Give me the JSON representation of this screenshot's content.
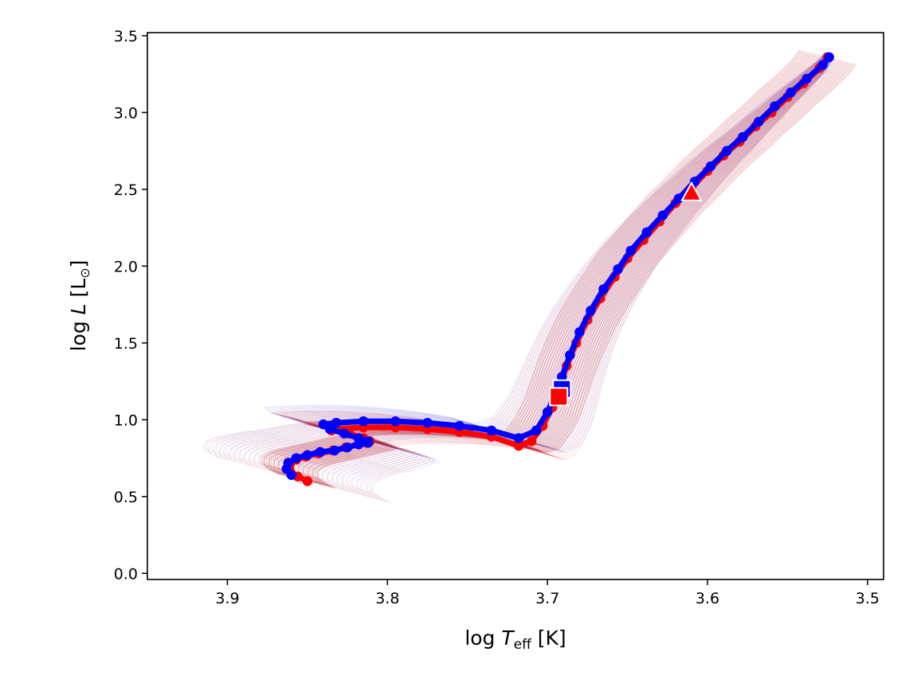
{
  "chart_data": {
    "type": "line",
    "title": "",
    "xlabel": "log T_eff [K]",
    "ylabel": "log L [L⊙]",
    "xlim": [
      3.95,
      3.49
    ],
    "ylim": [
      -0.04,
      3.52
    ],
    "x_inverted": true,
    "grid": false,
    "x_ticks": [
      3.9,
      3.8,
      3.7,
      3.6,
      3.5
    ],
    "y_ticks": [
      0.0,
      0.5,
      1.0,
      1.5,
      2.0,
      2.5,
      3.0,
      3.5
    ],
    "x_tick_labels": [
      "3.9",
      "3.8",
      "3.7",
      "3.6",
      "3.5"
    ],
    "y_tick_labels": [
      "0.0",
      "0.5",
      "1.0",
      "1.5",
      "2.0",
      "2.5",
      "3.0",
      "3.5"
    ],
    "colors": {
      "blue": "#0000ff",
      "red": "#ff0000",
      "ensemble_blue": "#3a2fd0",
      "ensemble_red": "#c00010"
    },
    "series": [
      {
        "color": "#ff0000",
        "x": [
          3.85,
          3.856,
          3.861,
          3.861,
          3.857,
          3.851,
          3.843,
          3.834,
          3.826,
          3.818,
          3.813,
          3.811,
          3.815,
          3.824,
          3.835,
          3.832,
          3.815,
          3.795,
          3.775,
          3.755,
          3.735,
          3.718,
          3.71,
          3.703,
          3.697,
          3.693,
          3.688,
          3.682,
          3.675,
          3.667,
          3.658,
          3.65,
          3.64,
          3.63,
          3.62,
          3.61,
          3.6,
          3.59,
          3.58,
          3.57,
          3.56,
          3.55,
          3.54,
          3.53,
          3.525
        ],
        "y": [
          0.6,
          0.63,
          0.67,
          0.71,
          0.74,
          0.76,
          0.78,
          0.8,
          0.82,
          0.84,
          0.85,
          0.86,
          0.88,
          0.91,
          0.93,
          0.94,
          0.95,
          0.95,
          0.94,
          0.92,
          0.89,
          0.83,
          0.86,
          0.96,
          1.08,
          1.2,
          1.35,
          1.5,
          1.65,
          1.79,
          1.93,
          2.05,
          2.17,
          2.29,
          2.41,
          2.51,
          2.62,
          2.72,
          2.81,
          2.91,
          3.0,
          3.1,
          3.19,
          3.29,
          3.36
        ]
      },
      {
        "color": "#0000ff",
        "x": [
          3.86,
          3.863,
          3.862,
          3.857,
          3.85,
          3.842,
          3.833,
          3.825,
          3.818,
          3.812,
          3.812,
          3.818,
          3.827,
          3.836,
          3.84,
          3.832,
          3.815,
          3.795,
          3.775,
          3.755,
          3.735,
          3.718,
          3.707,
          3.7,
          3.695,
          3.691,
          3.686,
          3.68,
          3.673,
          3.665,
          3.656,
          3.648,
          3.638,
          3.628,
          3.618,
          3.608,
          3.598,
          3.588,
          3.578,
          3.568,
          3.558,
          3.548,
          3.538,
          3.528,
          3.524
        ],
        "y": [
          0.64,
          0.68,
          0.72,
          0.75,
          0.77,
          0.79,
          0.8,
          0.82,
          0.84,
          0.85,
          0.86,
          0.88,
          0.91,
          0.94,
          0.97,
          0.98,
          0.99,
          0.99,
          0.98,
          0.96,
          0.93,
          0.88,
          0.93,
          1.05,
          1.17,
          1.28,
          1.42,
          1.57,
          1.71,
          1.85,
          1.98,
          2.1,
          2.22,
          2.33,
          2.44,
          2.55,
          2.65,
          2.75,
          2.84,
          2.94,
          3.04,
          3.13,
          3.22,
          3.31,
          3.36
        ]
      }
    ],
    "markers": [
      {
        "shape": "square",
        "color": "#0000ff",
        "x": 3.691,
        "y": 1.2
      },
      {
        "shape": "square",
        "color": "#ff0000",
        "x": 3.693,
        "y": 1.15
      },
      {
        "shape": "triangle",
        "color": "#ff0000",
        "x": 3.61,
        "y": 2.48
      }
    ]
  }
}
